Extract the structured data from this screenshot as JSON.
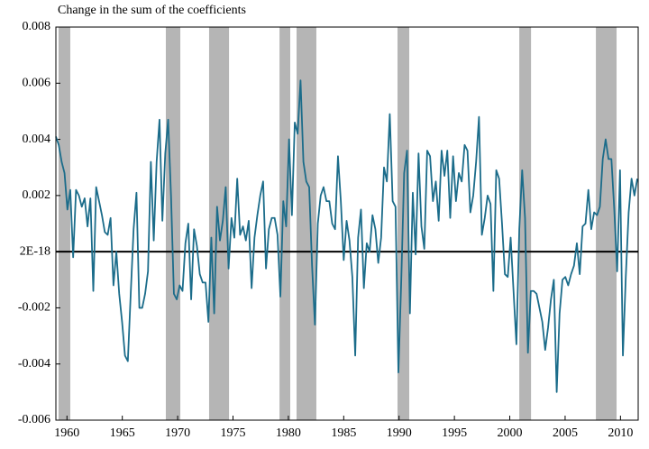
{
  "chart_data": {
    "type": "line",
    "title": "Change in the sum of the coefficients",
    "xlim": [
      1959,
      2011.6
    ],
    "xticks": [
      1960,
      1965,
      1970,
      1975,
      1980,
      1985,
      1990,
      1995,
      2000,
      2005,
      2010
    ],
    "ylim": [
      -0.006,
      0.008
    ],
    "yticks": [
      0.008,
      0.006,
      0.004,
      0.002,
      {
        "value": 2e-18,
        "label": "2E-18"
      },
      -0.002,
      -0.004,
      -0.006
    ],
    "shaded_color": "#b5b5b5",
    "shaded_periods": [
      [
        1959.24,
        1960.3
      ],
      [
        1968.93,
        1970.24
      ],
      [
        1972.84,
        1974.64
      ],
      [
        1979.2,
        1980.17
      ],
      [
        1980.74,
        1982.53
      ],
      [
        1989.86,
        1990.92
      ],
      [
        2000.86,
        2001.92
      ],
      [
        2007.78,
        2009.65
      ]
    ],
    "series": [
      {
        "color": "#1b6c8a",
        "x": [
          1959,
          1959.26,
          1959.52,
          1959.78,
          1960.04,
          1960.3,
          1960.56,
          1960.82,
          1961.08,
          1961.34,
          1961.6,
          1961.86,
          1962.12,
          1962.38,
          1962.64,
          1962.9,
          1963.16,
          1963.42,
          1963.68,
          1963.94,
          1964.2,
          1964.46,
          1964.72,
          1964.98,
          1965.24,
          1965.5,
          1965.76,
          1966.02,
          1966.28,
          1966.54,
          1966.8,
          1967.06,
          1967.32,
          1967.58,
          1967.84,
          1968.1,
          1968.36,
          1968.62,
          1968.88,
          1969.14,
          1969.4,
          1969.66,
          1969.92,
          1970.18,
          1970.44,
          1970.7,
          1970.96,
          1971.22,
          1971.48,
          1971.74,
          1972,
          1972.26,
          1972.52,
          1972.78,
          1973.04,
          1973.3,
          1973.56,
          1973.82,
          1974.08,
          1974.34,
          1974.6,
          1974.86,
          1975.12,
          1975.38,
          1975.64,
          1975.9,
          1976.16,
          1976.42,
          1976.68,
          1976.94,
          1977.2,
          1977.46,
          1977.72,
          1977.98,
          1978.24,
          1978.5,
          1978.76,
          1979.02,
          1979.28,
          1979.54,
          1979.8,
          1980.06,
          1980.32,
          1980.58,
          1980.84,
          1981.1,
          1981.36,
          1981.62,
          1981.88,
          1982.14,
          1982.4,
          1982.66,
          1982.92,
          1983.18,
          1983.44,
          1983.7,
          1983.96,
          1984.22,
          1984.48,
          1984.74,
          1985,
          1985.26,
          1985.52,
          1985.78,
          1986.04,
          1986.3,
          1986.56,
          1986.82,
          1987.08,
          1987.34,
          1987.6,
          1987.86,
          1988.12,
          1988.38,
          1988.64,
          1988.9,
          1989.16,
          1989.42,
          1989.68,
          1989.94,
          1990.2,
          1990.46,
          1990.72,
          1990.98,
          1991.24,
          1991.5,
          1991.76,
          1992.02,
          1992.28,
          1992.54,
          1992.8,
          1993.06,
          1993.32,
          1993.58,
          1993.84,
          1994.1,
          1994.36,
          1994.62,
          1994.88,
          1995.14,
          1995.4,
          1995.66,
          1995.92,
          1996.18,
          1996.44,
          1996.7,
          1996.96,
          1997.22,
          1997.48,
          1997.74,
          1998,
          1998.26,
          1998.52,
          1998.78,
          1999.04,
          1999.3,
          1999.56,
          1999.82,
          2000.08,
          2000.34,
          2000.6,
          2000.86,
          2001.12,
          2001.38,
          2001.64,
          2001.9,
          2002.16,
          2002.42,
          2002.68,
          2002.94,
          2003.2,
          2003.46,
          2003.72,
          2003.98,
          2004.24,
          2004.5,
          2004.76,
          2005.02,
          2005.28,
          2005.54,
          2005.8,
          2006.06,
          2006.32,
          2006.58,
          2006.84,
          2007.1,
          2007.36,
          2007.62,
          2007.88,
          2008.14,
          2008.4,
          2008.66,
          2008.92,
          2009.18,
          2009.44,
          2009.7,
          2009.96,
          2010.22,
          2010.48,
          2010.74,
          2011,
          2011.26,
          2011.52
        ],
        "values": [
          0.0041,
          0.0038,
          0.0032,
          0.0028,
          0.0015,
          0.0022,
          -0.0002,
          0.0022,
          0.002,
          0.0016,
          0.0019,
          0.0009,
          0.0019,
          -0.0014,
          0.0023,
          0.0018,
          0.0013,
          0.0007,
          0.0006,
          0.0012,
          -0.0012,
          0.0,
          -0.0015,
          -0.0025,
          -0.0037,
          -0.0039,
          -0.0015,
          0.0008,
          0.0021,
          -0.002,
          -0.002,
          -0.0015,
          -0.0007,
          0.0032,
          0.0004,
          0.0032,
          0.0047,
          0.0011,
          0.0035,
          0.0047,
          0.002,
          -0.0015,
          -0.0017,
          -0.0012,
          -0.0014,
          0.0003,
          0.001,
          -0.0017,
          0.0008,
          0.0002,
          -0.0008,
          -0.0011,
          -0.0011,
          -0.0025,
          0.0005,
          -0.0022,
          0.0016,
          0.0004,
          0.0011,
          0.0023,
          -0.0006,
          0.0012,
          0.0005,
          0.0026,
          0.0006,
          0.0009,
          0.0004,
          0.0011,
          -0.0013,
          0.0005,
          0.0013,
          0.002,
          0.0025,
          -0.0006,
          0.0008,
          0.0012,
          0.0012,
          0.0006,
          -0.0016,
          0.0018,
          0.0009,
          0.004,
          0.0013,
          0.0046,
          0.0042,
          0.0061,
          0.0032,
          0.0025,
          0.0023,
          -0.0005,
          -0.0026,
          0.001,
          0.002,
          0.0023,
          0.0018,
          0.0018,
          0.001,
          0.0008,
          0.0034,
          0.0018,
          -0.0003,
          0.0011,
          0.0004,
          -0.0009,
          -0.0037,
          0.0005,
          0.0015,
          -0.0013,
          0.0003,
          0.0,
          0.0013,
          0.0008,
          -0.0004,
          0.0005,
          0.003,
          0.0025,
          0.0049,
          0.0018,
          0.0016,
          -0.0043,
          -0.001,
          0.0028,
          0.0036,
          -0.0022,
          0.0021,
          -0.0001,
          0.0035,
          0.0009,
          0.0001,
          0.0036,
          0.0034,
          0.0018,
          0.0025,
          0.0011,
          0.0036,
          0.0027,
          0.0036,
          0.0012,
          0.0034,
          0.0018,
          0.0028,
          0.0025,
          0.0038,
          0.0036,
          0.0014,
          0.002,
          0.0032,
          0.0048,
          0.0006,
          0.0012,
          0.002,
          0.0017,
          -0.0014,
          0.0029,
          0.0026,
          0.001,
          -0.0008,
          -0.0009,
          0.0005,
          -0.0014,
          -0.0033,
          0.0008,
          0.0029,
          0.0012,
          -0.0036,
          -0.0014,
          -0.0014,
          -0.0015,
          -0.002,
          -0.0025,
          -0.0035,
          -0.0027,
          -0.0017,
          -0.001,
          -0.005,
          -0.0022,
          -0.001,
          -0.0009,
          -0.0012,
          -0.0008,
          -0.0005,
          0.0003,
          -0.0008,
          0.0009,
          0.001,
          0.0022,
          0.0008,
          0.0014,
          0.0013,
          0.0016,
          0.0033,
          0.004,
          0.0033,
          0.0033,
          0.0015,
          -0.0007,
          0.0029,
          -0.0037,
          -0.0009,
          0.0014,
          0.0026,
          0.002,
          0.0026
        ]
      }
    ]
  }
}
